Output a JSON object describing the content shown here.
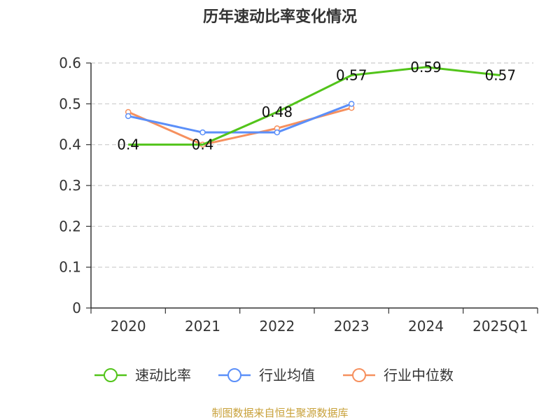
{
  "chart_data": {
    "type": "line",
    "title": "历年速动比率变化情况",
    "categories": [
      "2020",
      "2021",
      "2022",
      "2023",
      "2024",
      "2025Q1"
    ],
    "y_ticks": [
      "0",
      "0.1",
      "0.2",
      "0.3",
      "0.4",
      "0.5",
      "0.6"
    ],
    "ylim": [
      0,
      0.6
    ],
    "grid": true,
    "legend_position": "bottom",
    "series": [
      {
        "name": "速动比率",
        "color": "#52c41a",
        "values": [
          0.4,
          0.4,
          0.48,
          0.57,
          0.59,
          0.57
        ],
        "labels": [
          "0.4",
          "0.4",
          "0.48",
          "0.57",
          "0.59",
          "0.57"
        ]
      },
      {
        "name": "行业均值",
        "color": "#5b8ff9",
        "values": [
          0.47,
          0.43,
          0.43,
          0.5,
          null,
          null
        ]
      },
      {
        "name": "行业中位数",
        "color": "#f6905e",
        "values": [
          0.48,
          0.4,
          0.44,
          0.49,
          null,
          null
        ]
      }
    ],
    "source": "制图数据来自恒生聚源数据库"
  }
}
